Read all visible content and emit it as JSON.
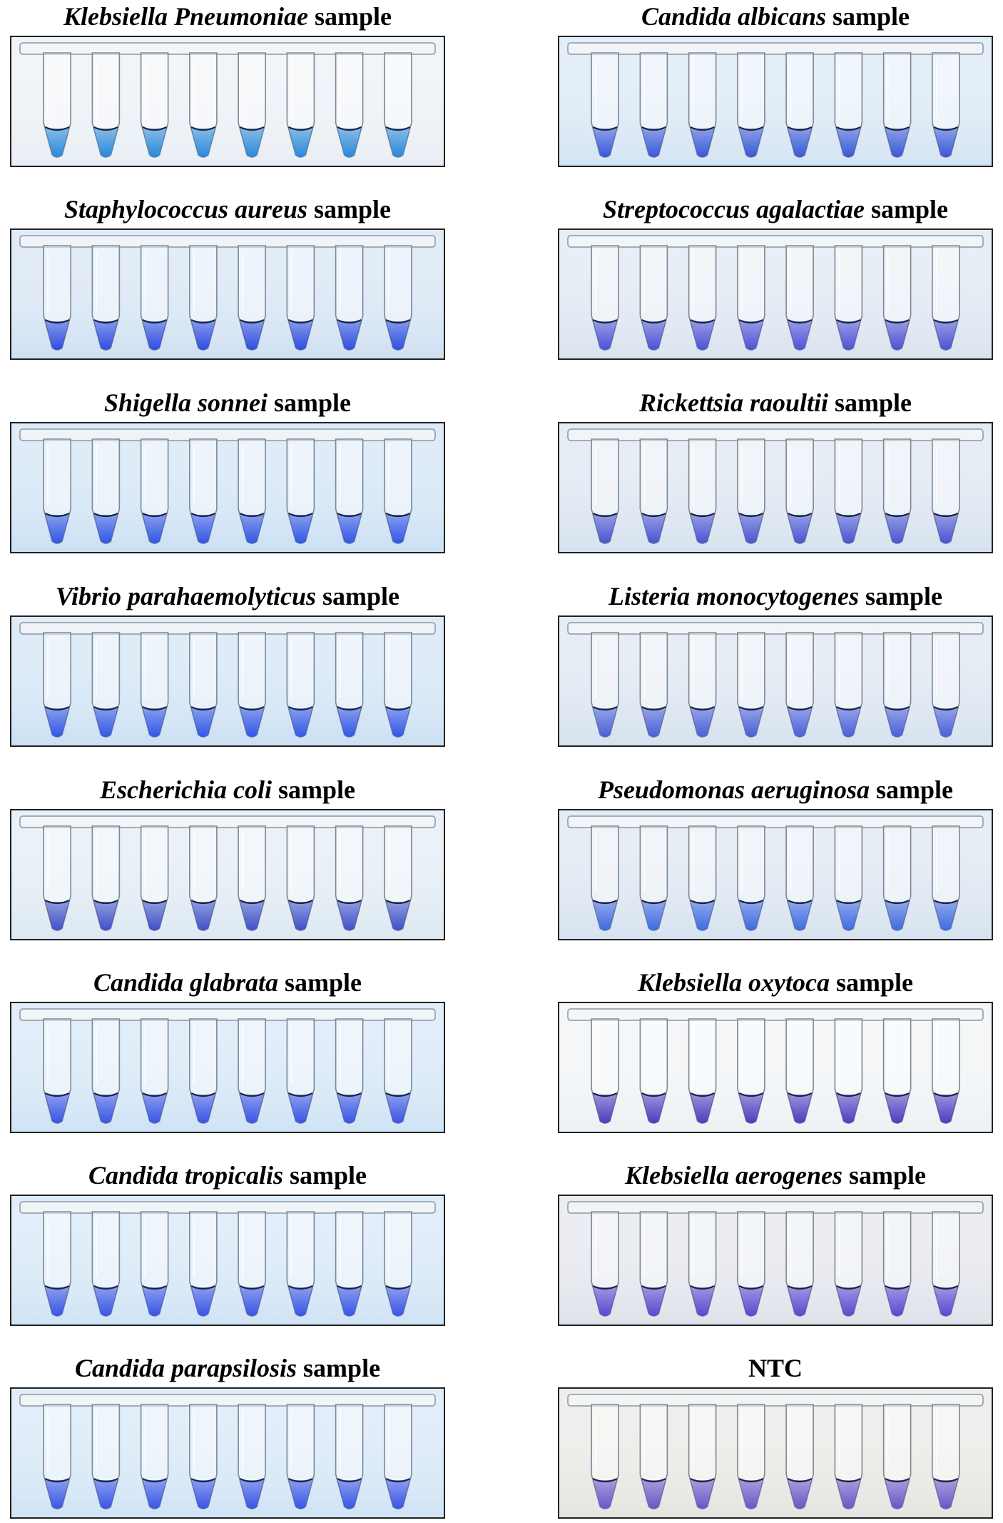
{
  "figure": {
    "panels": [
      {
        "organism": "Klebsiella Pneumoniae",
        "suffix": " sample",
        "tube_color": "#2a88d8",
        "background": "#e8eef4",
        "tubes": 8
      },
      {
        "organism": "Candida albicans",
        "suffix": " sample",
        "tube_color": "#3a58d8",
        "background": "#d3e4f3",
        "tubes": 8
      },
      {
        "organism": "Staphylococcus aureus",
        "suffix": " sample",
        "tube_color": "#2f4ee0",
        "background": "#cfe0f2",
        "tubes": 8
      },
      {
        "organism": "Streptococcus agalactiae",
        "suffix": " sample",
        "tube_color": "#4e52d6",
        "background": "#d9e3ef",
        "tubes": 8
      },
      {
        "organism": "Shigella sonnei",
        "suffix": " sample",
        "tube_color": "#3357e4",
        "background": "#cbe0f4",
        "tubes": 8
      },
      {
        "organism": "Rickettsia raoultii",
        "suffix": " sample",
        "tube_color": "#4a55d2",
        "background": "#d6e2ef",
        "tubes": 8
      },
      {
        "organism": "Vibrio parahaemolyticus",
        "suffix": " sample",
        "tube_color": "#3357e4",
        "background": "#cbe0f4",
        "tubes": 8
      },
      {
        "organism": "Listeria monocytogenes",
        "suffix": " sample",
        "tube_color": "#4a60d8",
        "background": "#d6e2ef",
        "tubes": 8
      },
      {
        "organism": "Escherichia coli",
        "suffix": " sample",
        "tube_color": "#4050c8",
        "background": "#dde8f2",
        "tubes": 8
      },
      {
        "organism": "Pseudomonas aeruginosa",
        "suffix": " sample",
        "tube_color": "#3f6ae0",
        "background": "#d6e2ef",
        "tubes": 8
      },
      {
        "organism": "Candida glabrata",
        "suffix": " sample",
        "tube_color": "#3a55e4",
        "background": "#cfe3f5",
        "tubes": 8
      },
      {
        "organism": "Klebsiella oxytoca",
        "suffix": " sample",
        "tube_color": "#4a3ec0",
        "background": "#eef1f4",
        "tubes": 8
      },
      {
        "organism": "Candida tropicalis",
        "suffix": " sample",
        "tube_color": "#3a55e4",
        "background": "#cfe3f5",
        "tubes": 8
      },
      {
        "organism": "Klebsiella aerogenes",
        "suffix": " sample",
        "tube_color": "#5a48d0",
        "background": "#dfe2ea",
        "tubes": 8
      },
      {
        "organism": "Candida parapsilosis",
        "suffix": " sample",
        "tube_color": "#3a55e4",
        "background": "#cfe3f5",
        "tubes": 8
      },
      {
        "organism": "",
        "suffix": "NTC",
        "tube_color": "#6a55c8",
        "background": "#e4e4e0",
        "tubes": 8
      }
    ]
  }
}
